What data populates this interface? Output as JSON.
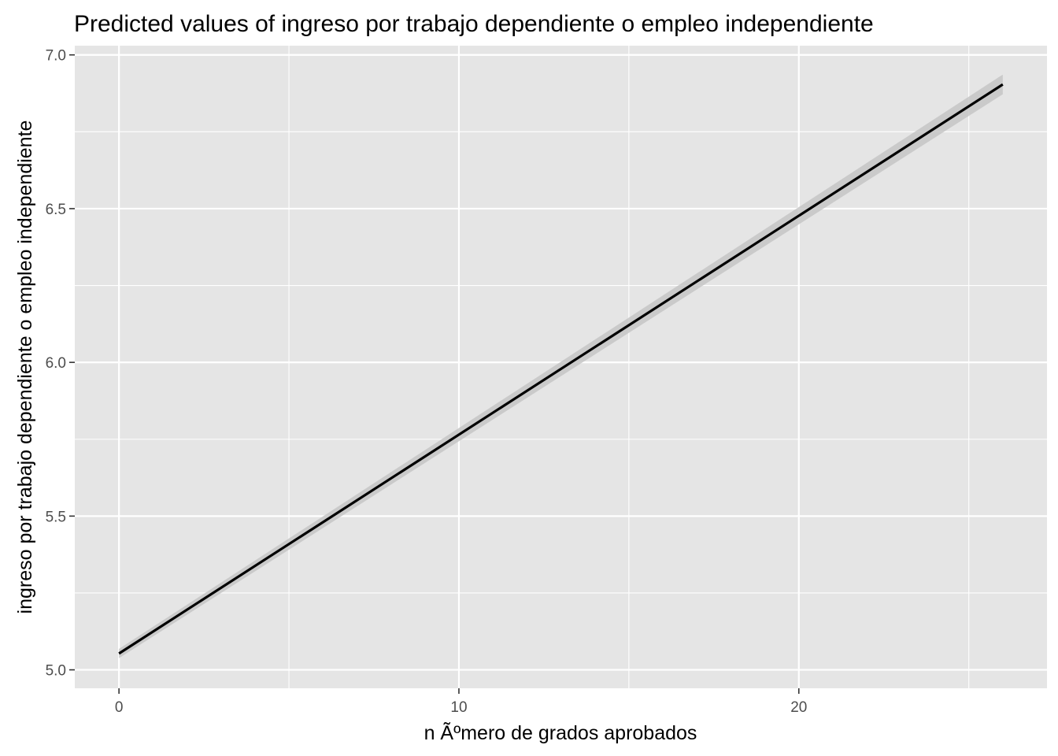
{
  "chart_data": {
    "type": "line",
    "title": "Predicted values of ingreso por trabajo dependiente o empleo independiente",
    "xlabel": "n Ãºmero de grados aprobados",
    "ylabel": "ingreso por trabajo dependiente o empleo independiente",
    "xlim": [
      -1.3,
      27.3
    ],
    "ylim": [
      4.94,
      7.03
    ],
    "x_ticks": [
      0,
      10,
      20
    ],
    "x_tick_labels": [
      "0",
      "10",
      "20"
    ],
    "y_ticks": [
      5.0,
      5.5,
      6.0,
      6.5,
      7.0
    ],
    "y_tick_labels": [
      "5.0",
      "5.5",
      "6.0",
      "6.5",
      "7.0"
    ],
    "grid": true,
    "colors": {
      "panel": "#e5e5e5",
      "grid": "#ffffff",
      "line": "#000000",
      "ribbon": "#c6c6c6"
    },
    "series": [
      {
        "x": [
          0,
          26
        ],
        "y": [
          5.053,
          6.904
        ],
        "ci_low": [
          5.038,
          6.872
        ],
        "ci_high": [
          5.068,
          6.936
        ]
      }
    ]
  }
}
